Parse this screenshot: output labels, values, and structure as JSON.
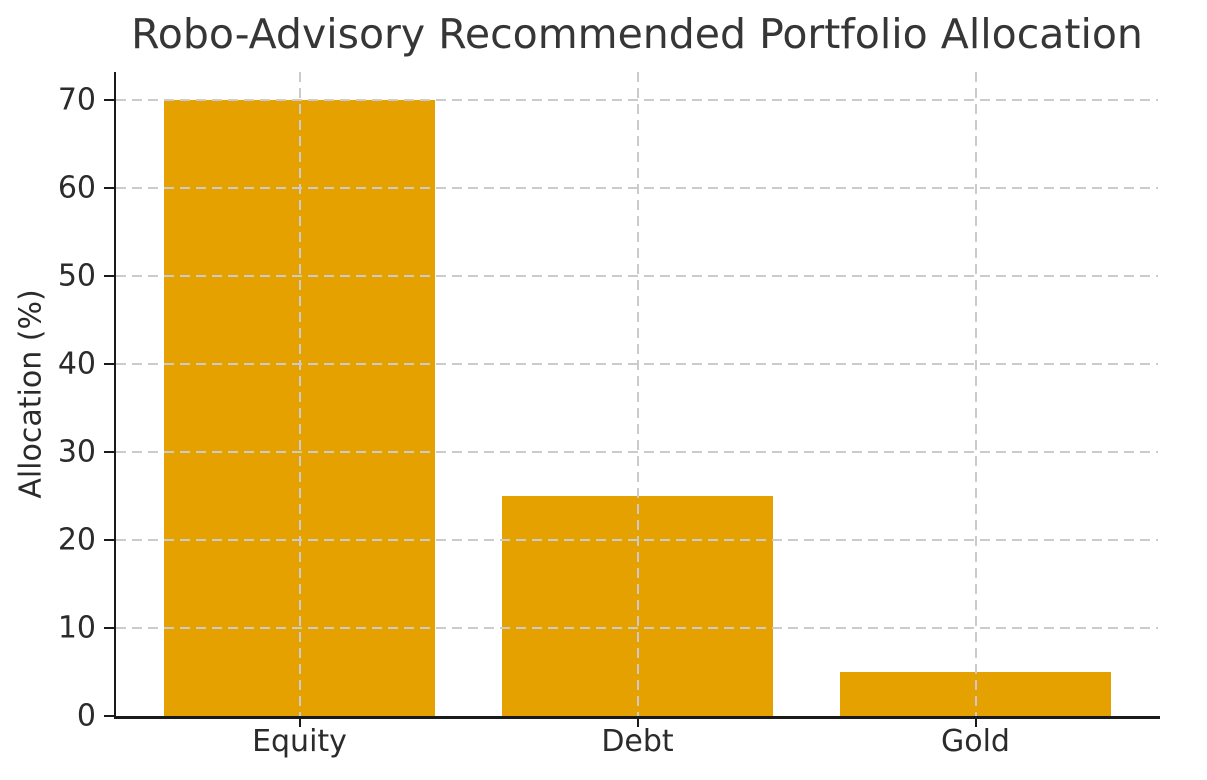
{
  "chart_data": {
    "type": "bar",
    "title": "Robo-Advisory Recommended Portfolio Allocation",
    "categories": [
      "Equity",
      "Debt",
      "Gold"
    ],
    "values": [
      70,
      25,
      5
    ],
    "xlabel": "",
    "ylabel": "Allocation (%)",
    "ylim": [
      0,
      73.2
    ],
    "yticks": [
      0,
      10,
      20,
      30,
      40,
      50,
      60,
      70
    ],
    "grid": "both-dashed-above-bars",
    "legend": "none",
    "colors": {
      "bar": "#E4A100",
      "grid": "#CBCBCB",
      "axis": "#1A1A1A",
      "text": "#363636",
      "background": "#FFFFFF"
    }
  }
}
